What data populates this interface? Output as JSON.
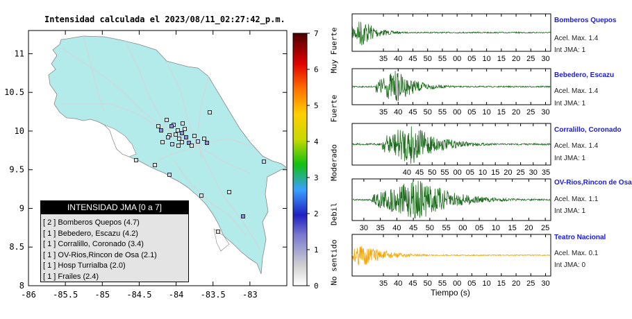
{
  "map": {
    "title": "Intensidad calculada el 2023/08/11_02:27:42_p.m.",
    "x_ticks": [
      "-86",
      "-85.5",
      "-85",
      "-84.5",
      "-84",
      "-83.5",
      "-83"
    ],
    "y_ticks": [
      "11",
      "10.5",
      "10",
      "9.5",
      "9",
      "8.5",
      "8"
    ],
    "xlim": [
      -86,
      -82.5
    ],
    "ylim": [
      8,
      11.3
    ]
  },
  "legend": {
    "title": "INTENSIDAD JMA [0 a 7]",
    "items": [
      "[ 2 ]  Bomberos Quepos (4.7)",
      "[ 1 ]  Bebedero, Escazu (4.2)",
      "[ 1 ]  Corralillo, Coronado (3.4)",
      "[ 1 ]  OV-Rios,Rincon de Osa (2.1)",
      "[ 1 ]  Hosp Turrialba (2.0)",
      "[ 1 ]  Frailes (2.4)"
    ]
  },
  "colorbar": {
    "ticks": [
      "7",
      "6",
      "5",
      "4",
      "3",
      "2",
      "1",
      "0"
    ],
    "labels": [
      "Muy Fuerte",
      "Fuerte",
      "Moderado",
      "Debil",
      "No sentido"
    ]
  },
  "stations": [
    {
      "name": "Bomberos Quepos",
      "accel": "Acel. Max. 1.4",
      "jma": "Int JMA: 1",
      "color": "#1a6b1a",
      "ticks": [
        "35",
        "40",
        "45",
        "50",
        "55",
        "00",
        "05",
        "10",
        "15",
        "20",
        "25",
        "30"
      ]
    },
    {
      "name": "Bebedero, Escazu",
      "accel": "Acel. Max. 1.4",
      "jma": "Int JMA: 1",
      "color": "#1a6b1a",
      "ticks": [
        "35",
        "40",
        "45",
        "50",
        "55",
        "00",
        "05",
        "10",
        "15",
        "20",
        "25",
        "30"
      ]
    },
    {
      "name": "Corralillo, Coronado",
      "accel": "Acel. Max. 1.4",
      "jma": "Int JMA: 1",
      "color": "#1a6b1a",
      "ticks": [
        "40",
        "45",
        "50",
        "55",
        "00",
        "05",
        "10",
        "15",
        "20",
        "25",
        "30",
        "35"
      ]
    },
    {
      "name": "OV-Rios,Rincon de Osa",
      "accel": "Acel. Max. 1.1",
      "jma": "Int JMA: 1",
      "color": "#1a6b1a",
      "ticks": [
        "30",
        "35",
        "40",
        "45",
        "50",
        "55",
        "00",
        "05",
        "10",
        "15",
        "20",
        "25"
      ]
    },
    {
      "name": "Teatro Nacional",
      "accel": "Acel. Max. 0.1",
      "jma": "Int JMA: 0",
      "color": "#f5a500",
      "ticks": [
        "35",
        "40",
        "45",
        "50",
        "55",
        "00",
        "05",
        "10",
        "15",
        "20",
        "25",
        "30"
      ]
    }
  ],
  "time_axis_label": "Tiempo (s)",
  "chart_data": [
    {
      "type": "scatter",
      "title": "Intensidad calculada el 2023/08/11_02:27:42_p.m.",
      "xlim": [
        -86,
        -82.5
      ],
      "ylim": [
        8,
        11.3
      ]
    },
    {
      "type": "line",
      "xlabel": "Tiempo (s)",
      "series": [
        {
          "name": "Bomberos Quepos"
        },
        {
          "name": "Bebedero, Escazu"
        },
        {
          "name": "Corralillo, Coronado"
        },
        {
          "name": "OV-Rios,Rincon de Osa"
        },
        {
          "name": "Teatro Nacional"
        }
      ]
    }
  ]
}
